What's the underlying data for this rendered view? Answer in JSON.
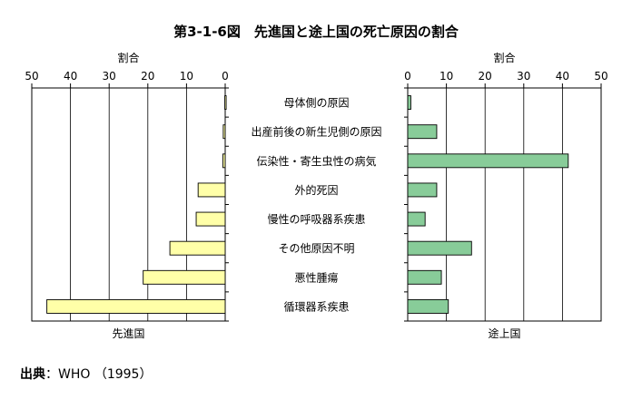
{
  "chart_data": {
    "type": "bar",
    "title": "第3-1-6図　先進国と途上国の死亡原因の割合",
    "categories": [
      "母体側の原因",
      "出産前後の新生児側の原因",
      "伝染性・寄生虫性の病気",
      "外的死因",
      "慢性の呼吸器系疾患",
      "その他原因不明",
      "悪性腫瘍",
      "循環器系疾患"
    ],
    "panels": [
      {
        "name": "先進国",
        "axis_label": "割合",
        "direction": "reversed",
        "xlim": [
          0,
          50
        ],
        "ticks": [
          50,
          40,
          30,
          20,
          10,
          0
        ],
        "grid": true,
        "color": "#ffffa8",
        "values": [
          0.1,
          0.5,
          0.6,
          7,
          7.5,
          14.3,
          21.2,
          46.1
        ]
      },
      {
        "name": "途上国",
        "axis_label": "割合",
        "direction": "normal",
        "xlim": [
          0,
          50
        ],
        "ticks": [
          0,
          10,
          20,
          30,
          40,
          50
        ],
        "grid": true,
        "color": "#88cc99",
        "values": [
          0.8,
          7.5,
          41.5,
          7.5,
          4.5,
          16.5,
          8.7,
          10.5
        ]
      }
    ]
  },
  "source": {
    "label": "出典",
    "text": "：WHO （1995）"
  }
}
